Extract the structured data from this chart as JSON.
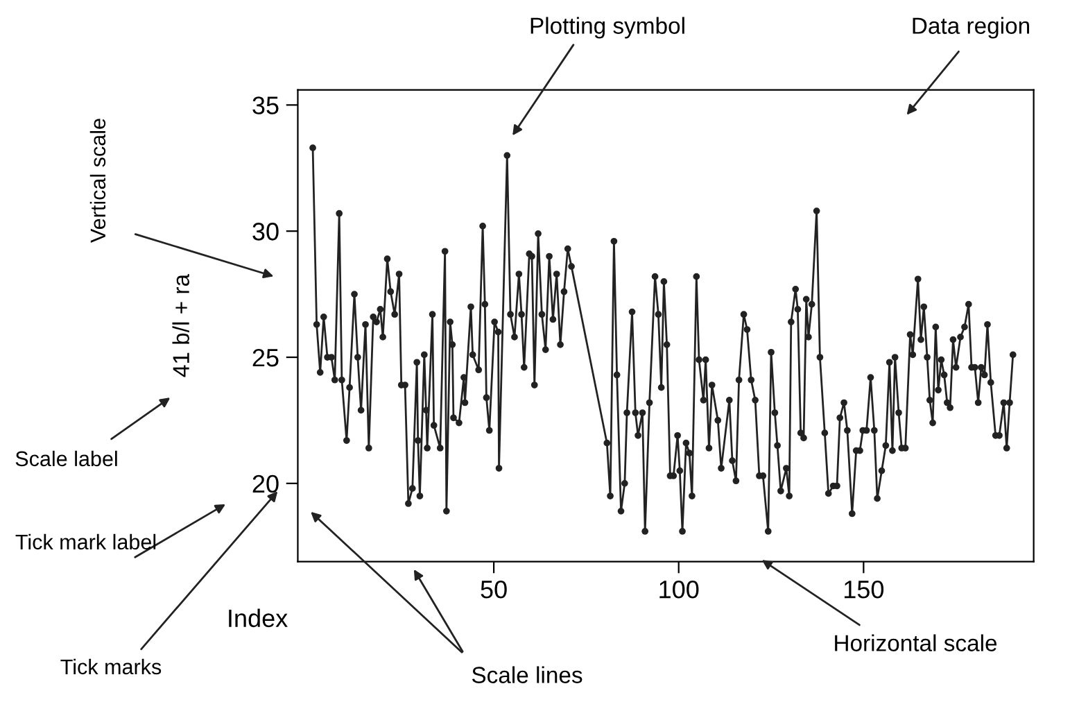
{
  "chart_data": {
    "type": "line",
    "xlabel": "Index",
    "ylabel": "41 b/l + ra",
    "xlim": [
      -3,
      196
    ],
    "ylim": [
      16.9,
      35.6
    ],
    "xticks": [
      50,
      100,
      150
    ],
    "yticks": [
      20,
      25,
      30,
      35
    ],
    "grid": false,
    "legend": false,
    "marker": "circle",
    "line_style": "solid",
    "annotations": [
      "Plotting symbol",
      "Data region",
      "Vertical scale",
      "Scale label",
      "Tick mark label",
      "Tick marks",
      "Scale lines",
      "Horizontal scale"
    ],
    "series": [
      {
        "color": "#222222",
        "x": [
          1.05,
          2.1,
          3.05,
          4.0,
          5.0,
          6.1,
          7.0,
          8.2,
          8.9,
          10.2,
          11.0,
          12.3,
          13.2,
          14.1,
          15.3,
          16.2,
          17.4,
          18.3,
          19.3,
          20.0,
          21.2,
          22.1,
          23.2,
          24.4,
          25.0,
          26.0,
          26.9,
          28.0,
          29.2,
          29.5,
          30.0,
          31.2,
          31.7,
          32.0,
          33.4,
          33.8,
          35.5,
          36.8,
          37.2,
          38.2,
          38.8,
          39.1,
          40.6,
          41.9,
          42.2,
          43.8,
          44.3,
          45.9,
          47.0,
          47.6,
          48.0,
          48.8,
          50.2,
          51.2,
          51.4,
          53.6,
          54.5,
          55.6,
          56.8,
          57.5,
          58.2,
          59.6,
          60.3,
          61.0,
          62.0,
          63.0,
          64.0,
          65.0,
          66.0,
          67.0,
          68.0,
          69.0,
          70.0,
          71.0,
          80.6,
          81.5,
          82.5,
          83.3,
          84.4,
          85.4,
          86.0,
          87.4,
          88.3,
          89.0,
          90.2,
          90.9,
          92.1,
          93.6,
          94.5,
          95.3,
          96.0,
          96.8,
          97.7,
          98.6,
          99.7,
          100.3,
          101.0,
          102.0,
          102.9,
          103.6,
          104.8,
          105.5,
          106.7,
          107.3,
          108.2,
          109.0,
          110.6,
          111.5,
          113.7,
          114.5,
          115.5,
          116.3,
          117.6,
          118.5,
          119.6,
          120.7,
          121.8,
          122.8,
          124.2,
          125.0,
          126.0,
          126.7,
          127.6,
          129.1,
          129.9,
          130.4,
          131.6,
          132.2,
          133.0,
          133.8,
          134.5,
          135.1,
          136.0,
          137.3,
          138.2,
          139.5,
          140.5,
          141.8,
          142.8,
          143.6,
          144.7,
          145.6,
          146.9,
          148.0,
          149.0,
          149.8,
          150.8,
          151.9,
          152.9,
          153.7,
          154.9,
          156.0,
          157.0,
          157.8,
          158.5,
          159.5,
          160.3,
          161.3,
          162.6,
          163.3,
          164.7,
          165.5,
          166.3,
          167.2,
          167.9,
          168.7,
          169.5,
          170.2,
          171.0,
          171.8,
          172.6,
          173.4,
          174.2,
          175.0,
          176.2,
          177.3,
          178.4,
          179.2,
          180.1,
          181.0,
          181.8,
          182.7,
          183.5,
          184.4,
          185.7,
          186.7,
          187.9,
          188.7,
          189.5,
          190.4
        ],
        "values": [
          33.3,
          26.3,
          24.4,
          26.6,
          25.0,
          25.0,
          24.1,
          30.7,
          24.1,
          21.7,
          23.8,
          27.5,
          25.0,
          22.9,
          26.3,
          21.4,
          26.6,
          26.4,
          26.9,
          25.8,
          28.9,
          27.6,
          26.7,
          28.3,
          23.9,
          23.9,
          19.2,
          19.8,
          24.8,
          21.7,
          19.5,
          25.1,
          22.9,
          21.4,
          26.7,
          22.3,
          21.4,
          29.2,
          18.9,
          26.4,
          25.5,
          22.6,
          22.4,
          24.2,
          23.2,
          27.0,
          25.1,
          24.5,
          30.2,
          27.1,
          23.4,
          22.1,
          26.4,
          26.0,
          20.6,
          33.0,
          26.7,
          25.8,
          28.3,
          26.7,
          24.6,
          29.1,
          29.0,
          23.9,
          29.9,
          26.7,
          25.3,
          29.0,
          26.5,
          28.3,
          25.5,
          27.6,
          29.3,
          28.6,
          21.6,
          19.5,
          29.6,
          24.3,
          18.9,
          20.0,
          22.8,
          26.8,
          22.8,
          21.9,
          22.8,
          18.1,
          23.2,
          28.2,
          26.7,
          23.8,
          28.0,
          25.5,
          20.3,
          20.3,
          21.9,
          20.5,
          18.1,
          21.6,
          21.2,
          19.5,
          28.2,
          24.9,
          23.3,
          24.9,
          21.4,
          23.9,
          22.5,
          20.6,
          23.3,
          20.9,
          20.1,
          24.1,
          26.7,
          26.1,
          24.1,
          23.3,
          20.3,
          20.3,
          18.1,
          25.2,
          22.8,
          21.5,
          19.7,
          20.6,
          19.5,
          26.4,
          27.7,
          26.9,
          22.0,
          21.8,
          27.3,
          25.8,
          27.1,
          30.8,
          25.0,
          22.0,
          19.6,
          19.9,
          19.9,
          22.6,
          23.2,
          22.1,
          18.8,
          21.3,
          21.3,
          22.1,
          22.1,
          24.2,
          22.1,
          19.4,
          20.5,
          21.5,
          24.8,
          21.3,
          25.0,
          22.8,
          21.4,
          21.4,
          25.9,
          25.1,
          28.1,
          25.7,
          27.0,
          25.0,
          23.3,
          22.4,
          26.2,
          23.7,
          24.9,
          24.3,
          23.2,
          23.0,
          25.7,
          24.6,
          25.8,
          26.2,
          27.1,
          24.6,
          24.6,
          23.2,
          24.6,
          24.3,
          26.3,
          24.0,
          21.9,
          21.9,
          23.2,
          21.4,
          23.2,
          25.1
        ]
      }
    ]
  }
}
